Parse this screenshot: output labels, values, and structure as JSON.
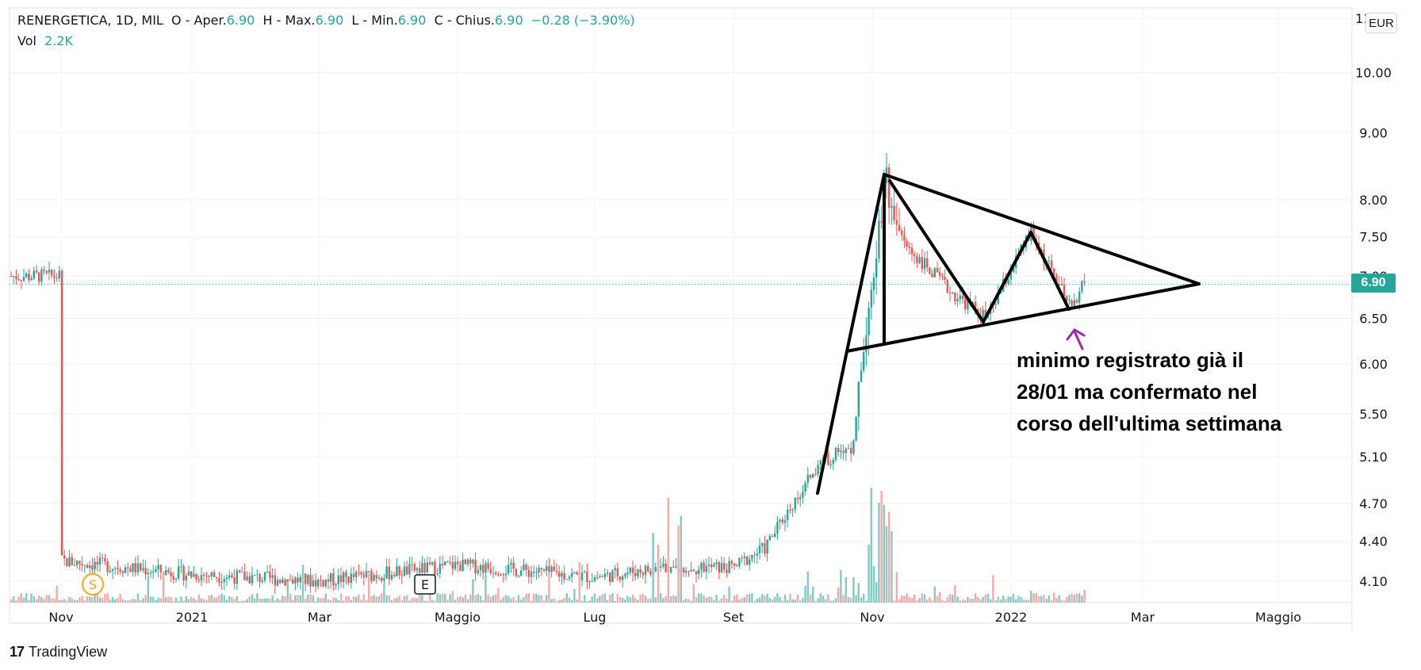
{
  "header": {
    "symbol": "RENERGETICA, 1D, MIL",
    "open_label": "O - Aper.",
    "open_value": "6.90",
    "high_label": "H - Max.",
    "high_value": "6.90",
    "low_label": "L - Min.",
    "low_value": "6.90",
    "close_label": "C - Chius.",
    "close_value": "6.90",
    "change": "−0.28 (−3.90%)",
    "vol_label": "Vol",
    "vol_value": "2.2K"
  },
  "currency": "EUR",
  "last_price_label": "6.90",
  "annotation": "minimo registrato già il\n28/01 ma confermato nel\ncorso dell'ultima settimana",
  "events": {
    "s_marker": "S",
    "e_marker": "E"
  },
  "brand": {
    "name": "TradingView",
    "logo": "17"
  },
  "colors": {
    "up": "#26a69a",
    "down": "#ef5350",
    "up_vol": "#80cbc4",
    "down_vol": "#f7a9a7",
    "drawing": "#000000",
    "arrow": "#9c27b0"
  },
  "chart_data": {
    "type": "candlestick",
    "title": "RENERGETICA, 1D, MIL",
    "x_ticks": [
      "Nov",
      "2021",
      "Mar",
      "Maggio",
      "Lug",
      "Set",
      "Nov",
      "2022",
      "Mar",
      "Maggio"
    ],
    "y_ticks": [
      "4.10",
      "4.40",
      "4.70",
      "5.10",
      "5.50",
      "6.00",
      "6.50",
      "7.00",
      "7.50",
      "8.00",
      "9.00",
      "10.00",
      "11.00"
    ],
    "y_scale": "log",
    "ylim": [
      3.95,
      11.2
    ],
    "last_price": 6.9,
    "series": [
      {
        "name": "price_path",
        "points": [
          [
            "Nov",
            4.25
          ],
          [
            "2021",
            4.15
          ],
          [
            "Mar",
            4.1
          ],
          [
            "Maggio",
            4.22
          ],
          [
            "Lug",
            4.13
          ],
          [
            "Lug/Set",
            4.2
          ],
          [
            "Set",
            4.2
          ],
          [
            "Set+",
            4.35
          ],
          [
            "Set/Nov",
            5.05
          ],
          [
            "Nov-",
            5.2
          ],
          [
            "Nov",
            8.3
          ],
          [
            "Nov+",
            7.4
          ],
          [
            "Dic",
            6.8
          ],
          [
            "Dic+",
            6.5
          ],
          [
            "2022",
            7.55
          ],
          [
            "Gen+",
            6.6
          ],
          [
            "Feb",
            7.0
          ]
        ]
      }
    ],
    "drawings": {
      "triangle_upper": [
        [
          "Nov",
          8.35
        ],
        [
          "Mar",
          6.9
        ]
      ],
      "triangle_lower": [
        [
          "Nov",
          6.2
        ],
        [
          "Mar",
          6.9
        ]
      ],
      "flagpole": [
        [
          "Set/Nov",
          4.75
        ],
        [
          "Nov",
          8.35
        ]
      ]
    }
  }
}
